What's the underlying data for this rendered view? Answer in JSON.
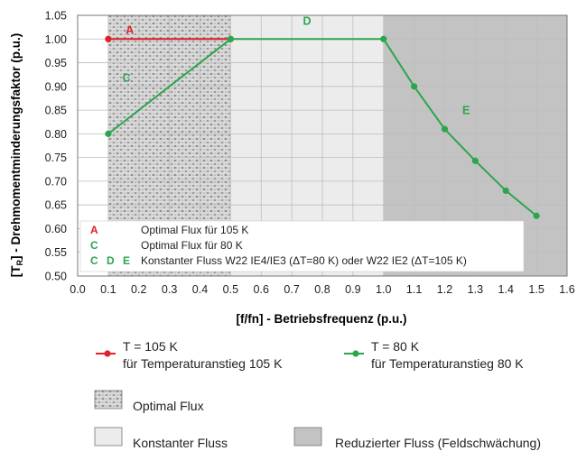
{
  "chart_data": {
    "type": "line",
    "xlabel": "[f/fn] - Betriebsfrequenz (p.u.)",
    "ylabel_main": "[T",
    "ylabel_sub": "R",
    "ylabel_rest": "] - Drehmomentminderungsfaktor (p.u.)",
    "xlim": [
      0,
      1.6
    ],
    "ylim": [
      0.5,
      1.05
    ],
    "x_ticks": [
      "0.0",
      "0.1",
      "0.2",
      "0.3",
      "0.4",
      "0.5",
      "0.6",
      "0.7",
      "0.8",
      "0.9",
      "1.0",
      "1.1",
      "1.2",
      "1.3",
      "1.4",
      "1.5",
      "1.6"
    ],
    "x_tick_values": [
      0,
      0.1,
      0.2,
      0.3,
      0.4,
      0.5,
      0.6,
      0.7,
      0.8,
      0.9,
      1.0,
      1.1,
      1.2,
      1.3,
      1.4,
      1.5,
      1.6
    ],
    "y_ticks": [
      "0.50",
      "0.55",
      "0.60",
      "0.65",
      "0.70",
      "0.75",
      "0.80",
      "0.85",
      "0.90",
      "0.95",
      "1.00",
      "1.05"
    ],
    "y_tick_values": [
      0.5,
      0.55,
      0.6,
      0.65,
      0.7,
      0.75,
      0.8,
      0.85,
      0.9,
      0.95,
      1.0,
      1.05
    ],
    "regions": [
      {
        "name": "optimal-flux",
        "x_range": [
          0.1,
          0.5
        ],
        "label": "Optimal Flux",
        "color": "#d9d9d9"
      },
      {
        "name": "constant-flux",
        "x_range": [
          0.5,
          1.0
        ],
        "label": "Konstanter Fluss",
        "color": "#ececec"
      },
      {
        "name": "reduced-flux",
        "x_range": [
          1.0,
          1.6
        ],
        "label": "Reduzierter Fluss (Feldschwächung)",
        "color": "#c3c3c3"
      }
    ],
    "series": [
      {
        "name": "T = 105 K",
        "sub": "für Temperaturanstieg 105 K",
        "color": "#e0202a",
        "x": [
          0.1,
          0.5
        ],
        "y": [
          1.0,
          1.0
        ]
      },
      {
        "name": "T = 80 K",
        "sub": "für Temperaturanstieg 80 K",
        "color": "#2ca64c",
        "x": [
          0.1,
          0.5,
          1.0,
          1.1,
          1.2,
          1.3,
          1.4,
          1.5
        ],
        "y": [
          0.8,
          1.0,
          1.0,
          0.9,
          0.81,
          0.743,
          0.68,
          0.627
        ]
      }
    ],
    "annotations": [
      {
        "text": "A",
        "x": 0.17,
        "y": 1.011,
        "color": "#e0202a"
      },
      {
        "text": "C",
        "x": 0.16,
        "y": 0.91,
        "color": "#2ca64c"
      },
      {
        "text": "D",
        "x": 0.75,
        "y": 1.03,
        "color": "#2ca64c"
      },
      {
        "text": "E",
        "x": 1.27,
        "y": 0.842,
        "color": "#2ca64c"
      }
    ],
    "inset_legend": [
      {
        "keys": [
          {
            "t": "A",
            "c": "#e0202a"
          }
        ],
        "text": "Optimal Flux für 105 K"
      },
      {
        "keys": [
          {
            "t": "C",
            "c": "#2ca64c"
          }
        ],
        "text": "Optimal Flux für 80 K"
      },
      {
        "keys": [
          {
            "t": "C",
            "c": "#2ca64c"
          },
          {
            "t": "D",
            "c": "#2ca64c"
          },
          {
            "t": "E",
            "c": "#2ca64c"
          }
        ],
        "text": "Konstanter Fluss W22 IE4/IE3 (ΔT=80 K) oder W22 IE2 (ΔT=105 K)"
      }
    ],
    "grid": true
  }
}
